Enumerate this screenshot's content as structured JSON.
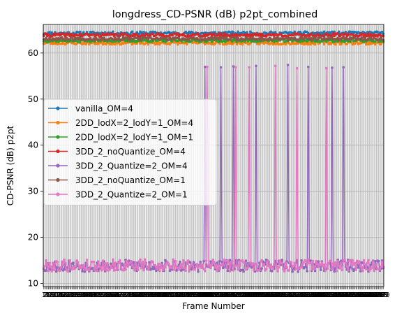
{
  "chart_data": {
    "type": "line",
    "title": "longdress_CD-PSNR (dB) p2pt_combined",
    "xlabel": "Frame Number",
    "ylabel": "CD-PSNR (dB) p2pt",
    "xlim": [
      0.5,
      300.5
    ],
    "ylim": [
      9.3,
      66.2
    ],
    "yticks": [
      10,
      20,
      30,
      40,
      50,
      60
    ],
    "grid": true,
    "legend_loc": "center-left",
    "frames": {
      "start": 1,
      "end": 300
    },
    "series": [
      {
        "name": "vanilla_OM=4",
        "color": "#1f77b4",
        "base": 64.3,
        "amp": 0.35,
        "seed": 11
      },
      {
        "name": "2DD_lodX=2_lodY=1_OM=4",
        "color": "#ff7f0e",
        "base": 62.2,
        "amp": 0.35,
        "seed": 23
      },
      {
        "name": "2DD_lodX=2_lodY=1_OM=1",
        "color": "#2ca02c",
        "base": 62.7,
        "amp": 0.3,
        "seed": 37
      },
      {
        "name": "3DD_2_noQuantize_OM=4",
        "color": "#d62728",
        "base": 63.9,
        "amp": 0.35,
        "seed": 41
      },
      {
        "name": "3DD_2_Quantize=2_OM=4",
        "color": "#9467bd",
        "base": 13.8,
        "amp": 1.3,
        "seed": 53,
        "spikes": [
          [
            143,
            57.0
          ],
          [
            157,
            56.9
          ],
          [
            168,
            57.1
          ],
          [
            188,
            57.2
          ],
          [
            216,
            57.4
          ],
          [
            234,
            57.0
          ],
          [
            255,
            56.8
          ],
          [
            265,
            56.9
          ]
        ]
      },
      {
        "name": "3DD_2_noQuantize_OM=1",
        "color": "#8c564b",
        "base": 63.1,
        "amp": 0.3,
        "seed": 67
      },
      {
        "name": "3DD_2_Quantize=2_OM=1",
        "color": "#e377c2",
        "base": 13.9,
        "amp": 1.3,
        "seed": 79,
        "spikes": [
          [
            145,
            57.0
          ],
          [
            170,
            56.9
          ],
          [
            182,
            56.9
          ],
          [
            205,
            57.2
          ],
          [
            224,
            56.7
          ],
          [
            250,
            56.7
          ]
        ]
      }
    ]
  }
}
